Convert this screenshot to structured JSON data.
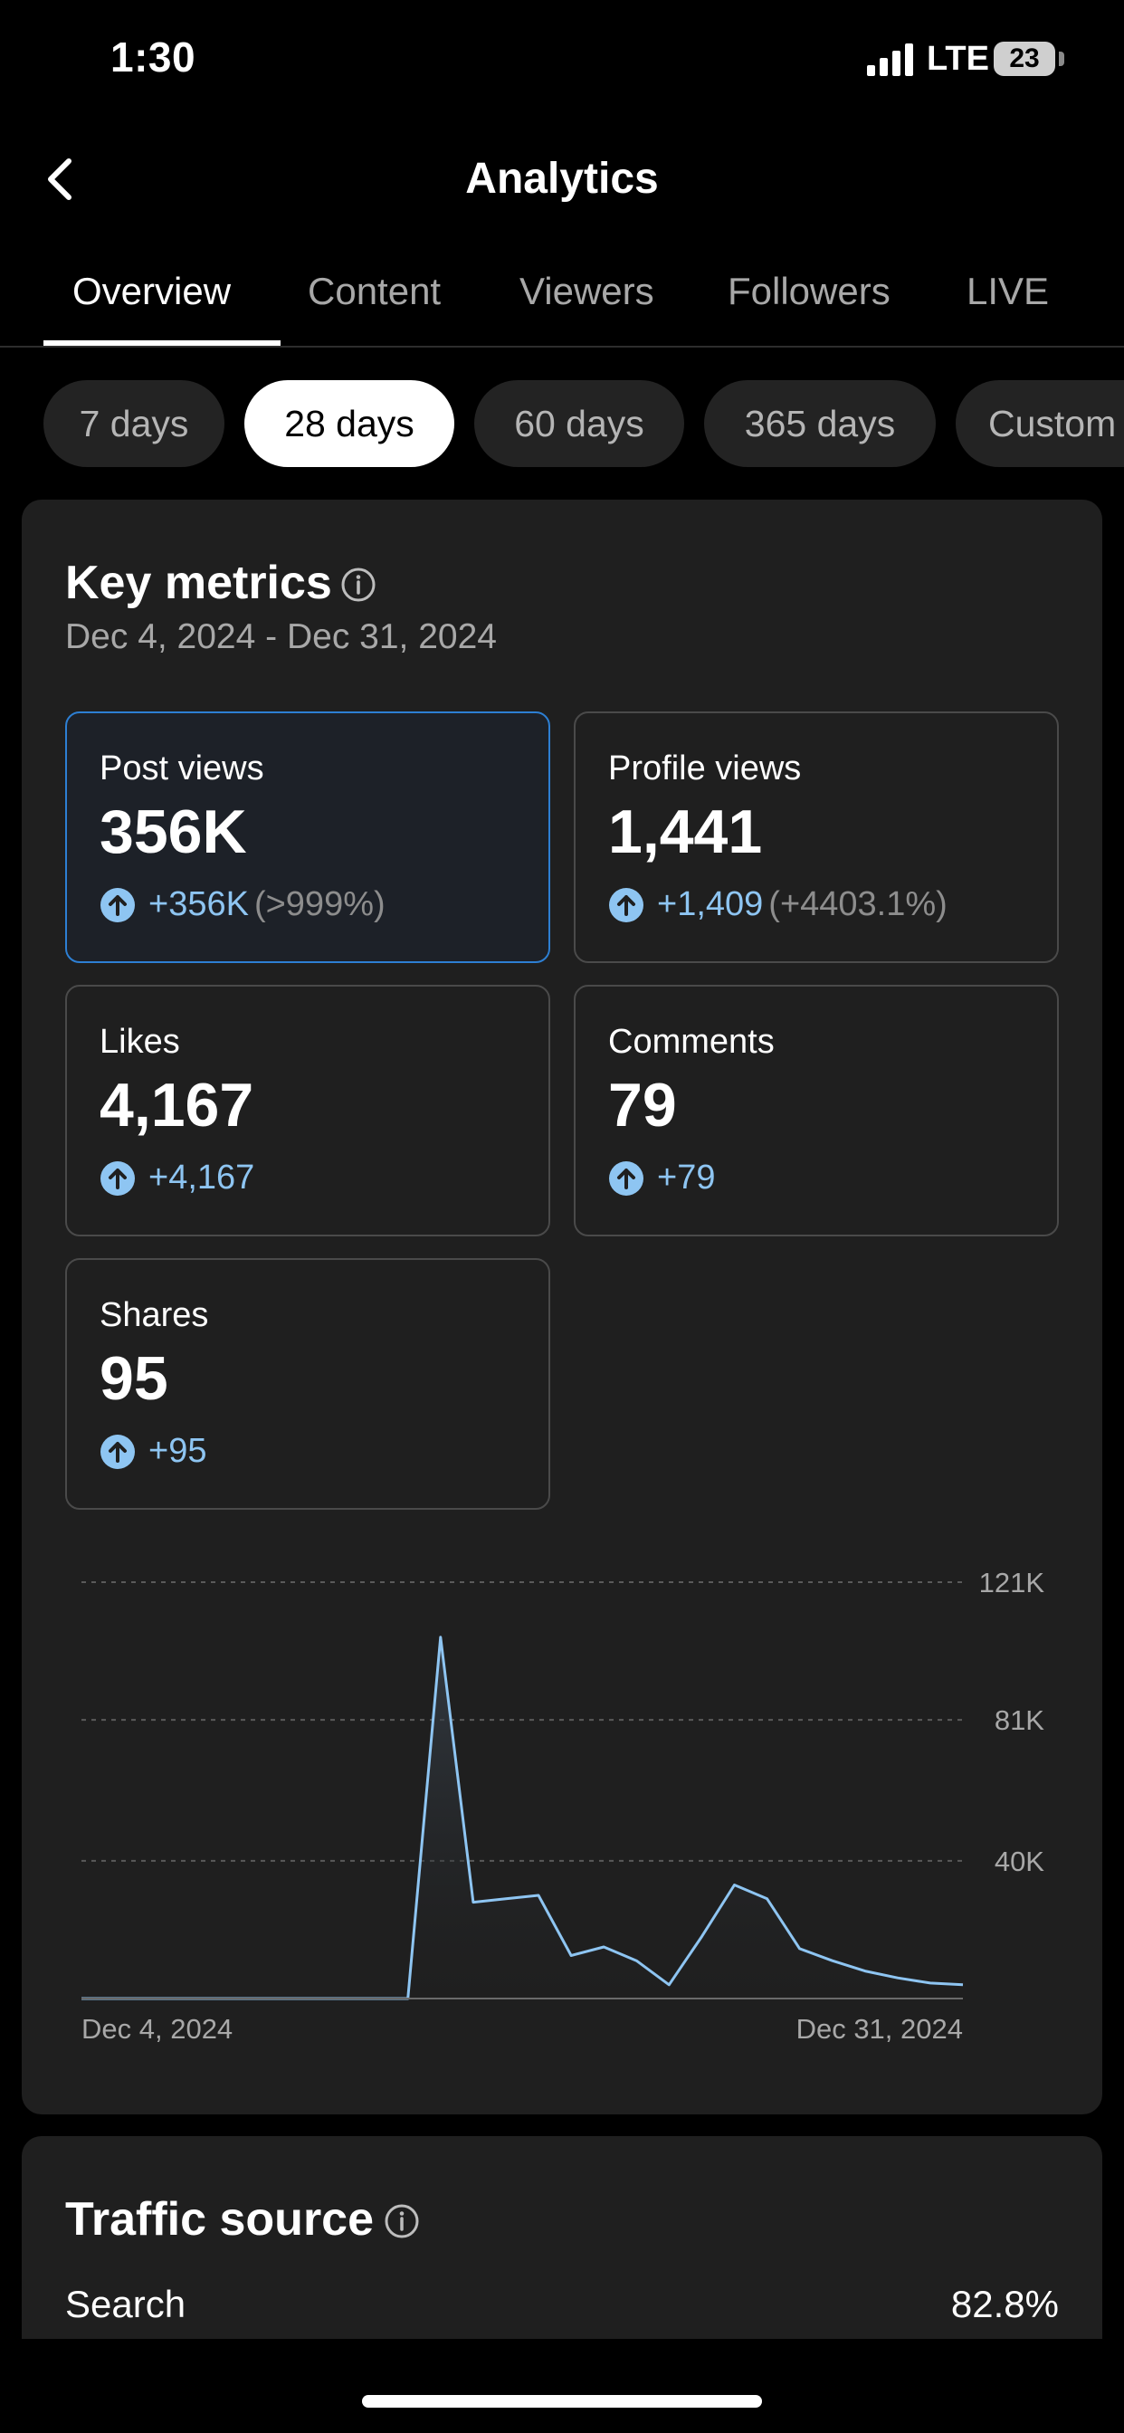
{
  "status_bar": {
    "time": "1:30",
    "network": "LTE",
    "battery": "23"
  },
  "header": {
    "title": "Analytics",
    "back_icon": "chevron-left-icon"
  },
  "tabs": [
    {
      "label": "Overview",
      "active": true
    },
    {
      "label": "Content",
      "active": false
    },
    {
      "label": "Viewers",
      "active": false
    },
    {
      "label": "Followers",
      "active": false
    },
    {
      "label": "LIVE",
      "active": false
    }
  ],
  "ranges": [
    {
      "label": "7 days",
      "active": false
    },
    {
      "label": "28 days",
      "active": true
    },
    {
      "label": "60 days",
      "active": false
    },
    {
      "label": "365 days",
      "active": false
    },
    {
      "label": "Custom",
      "active": false
    }
  ],
  "key_metrics": {
    "title": "Key metrics",
    "date_range": "Dec 4, 2024 - Dec 31, 2024",
    "metrics": [
      {
        "label": "Post views",
        "value": "356K",
        "change": "+356K",
        "change_pct": "(>999%)",
        "selected": true
      },
      {
        "label": "Profile views",
        "value": "1,441",
        "change": "+1,409",
        "change_pct": "(+4403.1%)",
        "selected": false
      },
      {
        "label": "Likes",
        "value": "4,167",
        "change": "+4,167",
        "change_pct": "",
        "selected": false
      },
      {
        "label": "Comments",
        "value": "79",
        "change": "+79",
        "change_pct": "",
        "selected": false
      },
      {
        "label": "Shares",
        "value": "95",
        "change": "+95",
        "change_pct": "",
        "selected": false
      }
    ]
  },
  "chart_data": {
    "type": "area",
    "x_start_label": "Dec 4, 2024",
    "x_end_label": "Dec 31, 2024",
    "y_ticks": [
      {
        "label": "121K",
        "value": 121000
      },
      {
        "label": "81K",
        "value": 81000
      },
      {
        "label": "40K",
        "value": 40000
      }
    ],
    "ylim": [
      0,
      121000
    ],
    "grid": true,
    "series": [
      {
        "values": [
          0,
          0,
          0,
          0,
          0,
          0,
          0,
          0,
          0,
          0,
          0,
          105000,
          28000,
          29000,
          30000,
          12500,
          15000,
          11000,
          4000,
          18000,
          33000,
          29000,
          14500,
          11000,
          8000,
          6000,
          4500,
          4000
        ]
      }
    ],
    "colors": {
      "line": "#8ec5f2",
      "grid": "#5a5a5a",
      "axis": "#6a6a6a"
    }
  },
  "traffic_source": {
    "title": "Traffic source",
    "rows": [
      {
        "label": "Search",
        "pct": "82.8%"
      }
    ]
  }
}
